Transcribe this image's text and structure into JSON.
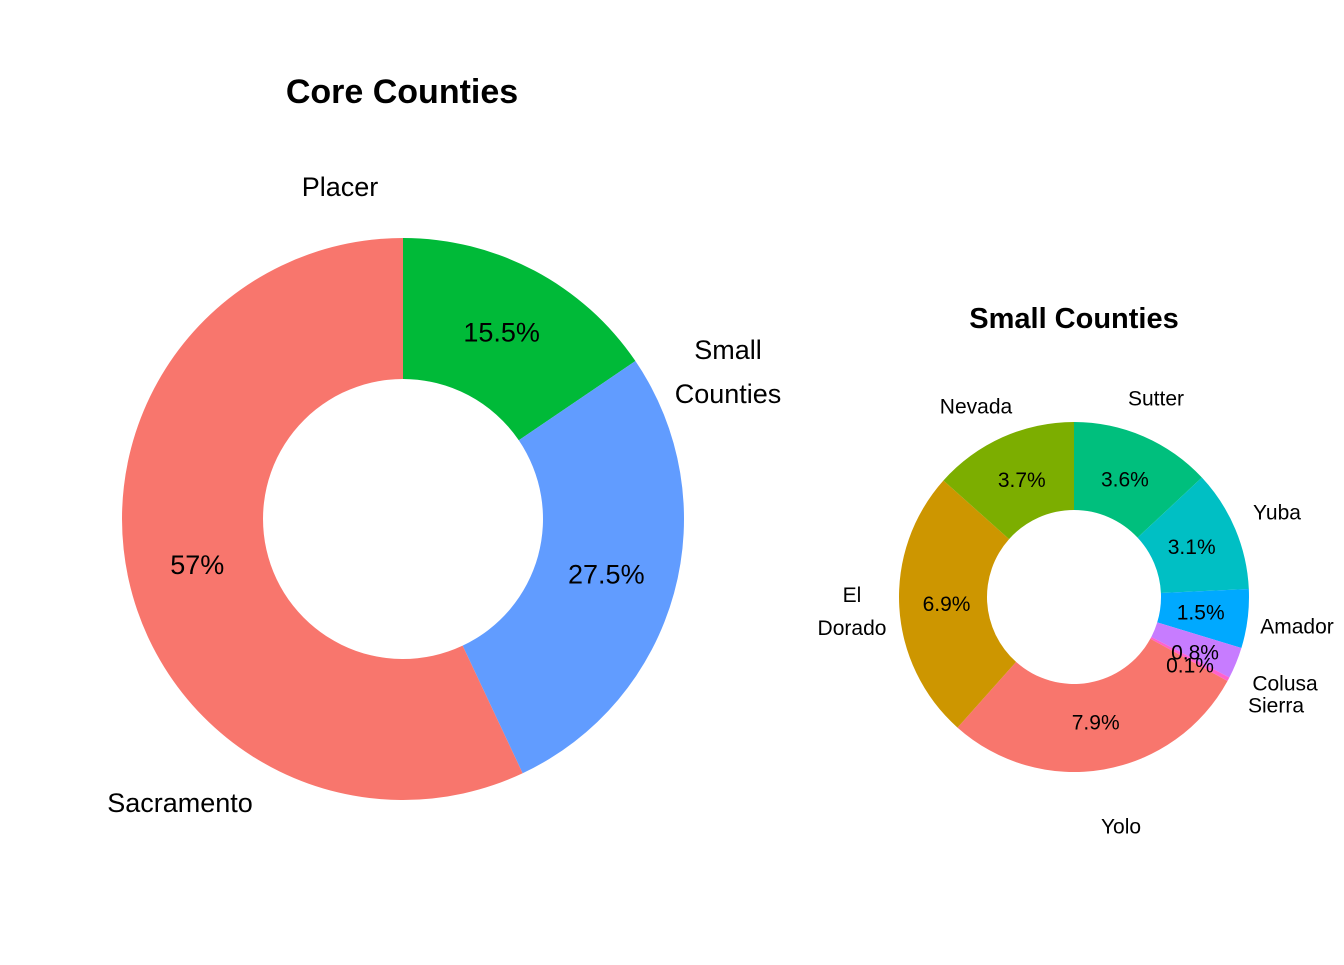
{
  "chart_data": [
    {
      "type": "pie",
      "title": "Core Counties",
      "slices": [
        {
          "label": "Placer",
          "value": 15.5,
          "value_label": "15.5%",
          "color": "#00BA38",
          "name_lines": [
            "Placer"
          ]
        },
        {
          "label": "Small Counties",
          "value": 27.5,
          "value_label": "27.5%",
          "color": "#619CFF",
          "name_lines": [
            "Small",
            "Counties"
          ]
        },
        {
          "label": "Sacramento",
          "value": 57,
          "value_label": "57%",
          "color": "#F8766D",
          "name_lines": [
            "Sacramento"
          ]
        }
      ]
    },
    {
      "type": "pie",
      "title": "Small Counties",
      "slices": [
        {
          "label": "Sutter",
          "value": 3.6,
          "value_label": "3.6%",
          "color": "#00BF7D",
          "name_lines": [
            "Sutter"
          ]
        },
        {
          "label": "Yuba",
          "value": 3.1,
          "value_label": "3.1%",
          "color": "#00BFC4",
          "name_lines": [
            "Yuba"
          ]
        },
        {
          "label": "Amador",
          "value": 1.5,
          "value_label": "1.5%",
          "color": "#00A9FF",
          "name_lines": [
            "Amador"
          ]
        },
        {
          "label": "Colusa",
          "value": 0.8,
          "value_label": "0.8%",
          "color": "#C77CFF",
          "name_lines": [
            "Colusa"
          ]
        },
        {
          "label": "Sierra",
          "value": 0.1,
          "value_label": "0.1%",
          "color": "#FF61CC",
          "name_lines": [
            "Sierra"
          ]
        },
        {
          "label": "Yolo",
          "value": 7.9,
          "value_label": "7.9%",
          "color": "#F8766D",
          "name_lines": [
            "Yolo"
          ]
        },
        {
          "label": "El Dorado",
          "value": 6.9,
          "value_label": "6.9%",
          "color": "#CD9600",
          "name_lines": [
            "El",
            "Dorado"
          ]
        },
        {
          "label": "Nevada",
          "value": 3.7,
          "value_label": "3.7%",
          "color": "#7CAE00",
          "name_lines": [
            "Nevada"
          ]
        }
      ]
    }
  ]
}
